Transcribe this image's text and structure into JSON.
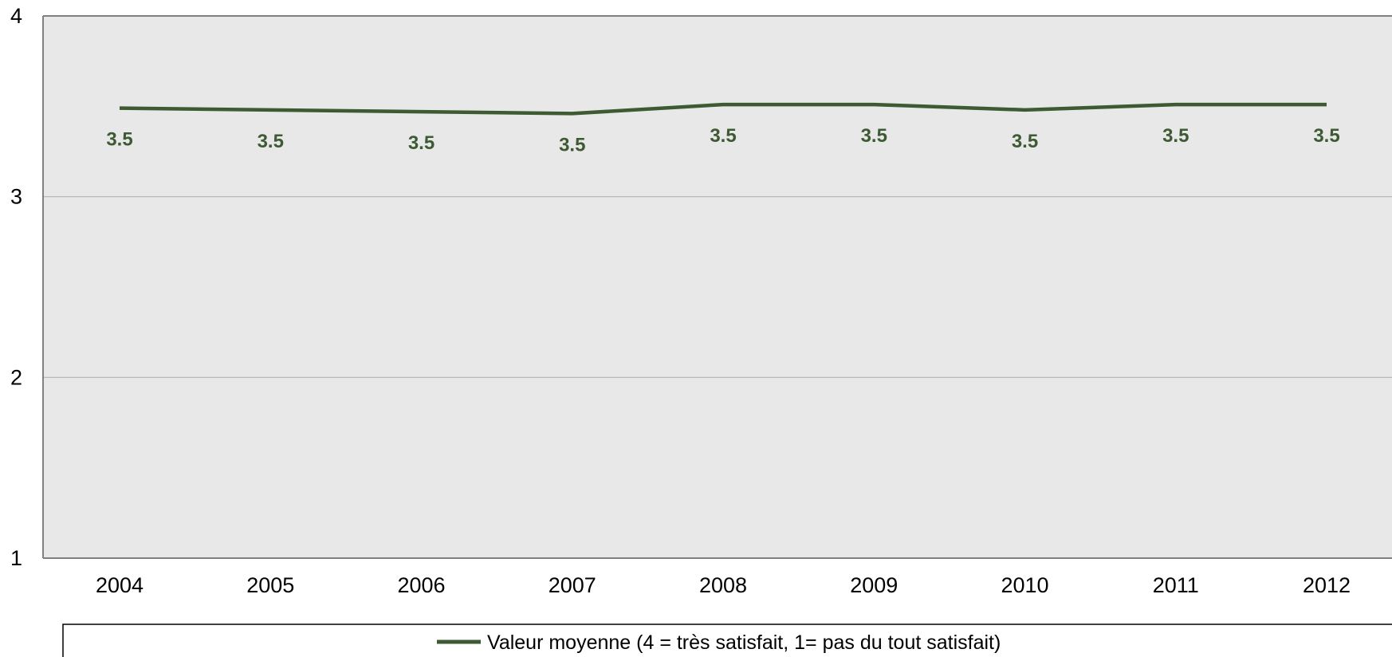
{
  "chart_data": {
    "type": "line",
    "title": "",
    "xlabel": "",
    "ylabel": "",
    "categories": [
      "2004",
      "2005",
      "2006",
      "2007",
      "2008",
      "2009",
      "2010",
      "2011",
      "2012"
    ],
    "ylim": [
      1,
      4
    ],
    "yticks": [
      "1",
      "2",
      "3",
      "4"
    ],
    "grid": true,
    "legend_position": "bottom",
    "series": [
      {
        "name": "Valeur moyenne (4 = très satisfait, 1= pas du tout satisfait)",
        "values": [
          3.49,
          3.48,
          3.47,
          3.46,
          3.51,
          3.51,
          3.48,
          3.51,
          3.51
        ],
        "labels": [
          "3.5",
          "3.5",
          "3.5",
          "3.5",
          "3.5",
          "3.5",
          "3.5",
          "3.5",
          "3.5"
        ],
        "color": "#3d5a33"
      }
    ],
    "colors": {
      "plot_background": "#e8e8e8",
      "gridline": "#b3b3b3",
      "axis": "#808080"
    }
  }
}
